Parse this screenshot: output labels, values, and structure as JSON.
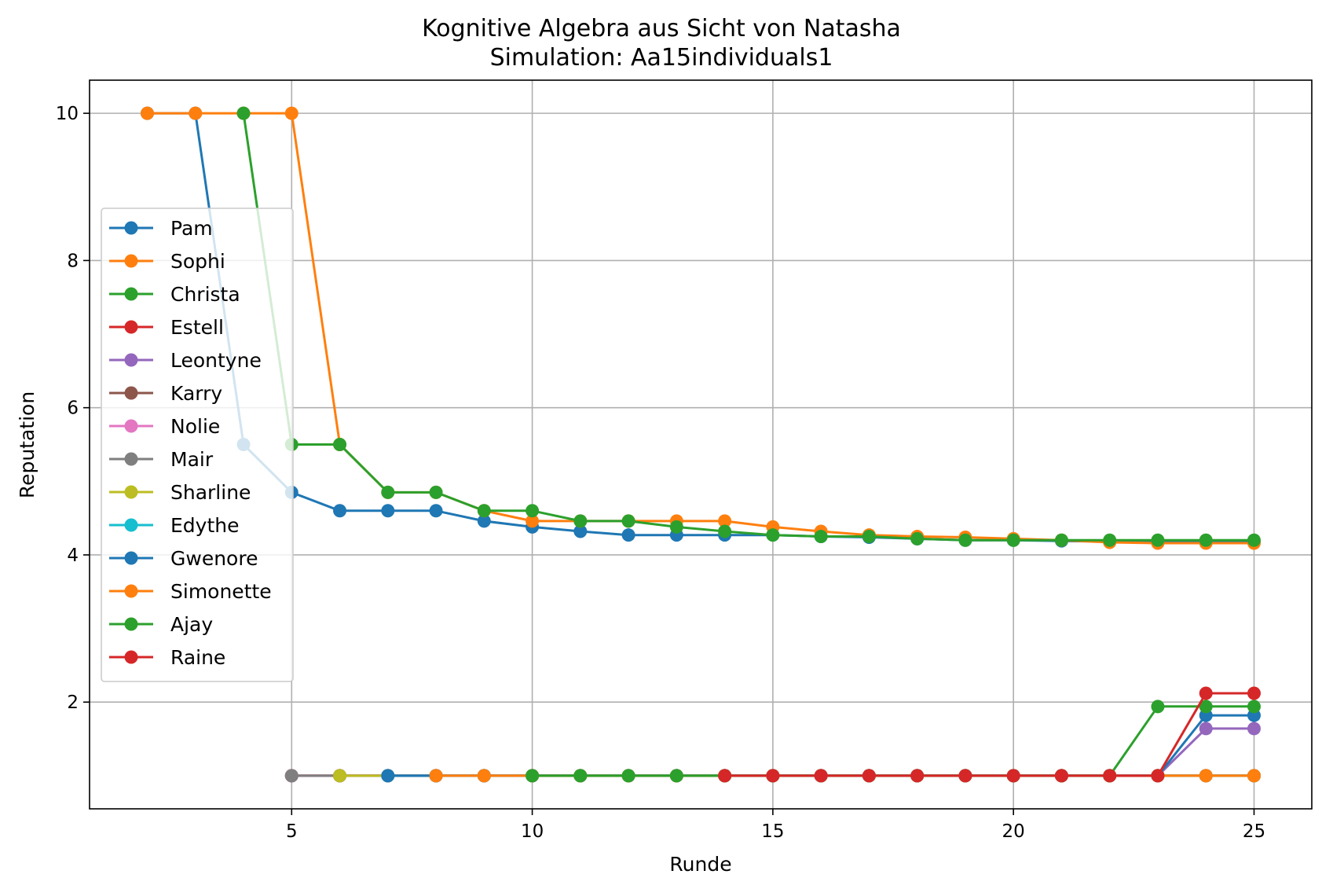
{
  "chart_data": {
    "type": "line",
    "title": "Kognitive Algebra aus Sicht von Natasha",
    "subtitle": "Simulation: Aa15individuals1",
    "xlabel": "Runde",
    "ylabel": "Reputation",
    "xlim": [
      0.8,
      26.2
    ],
    "ylim": [
      0.55,
      10.45
    ],
    "xticks": [
      5,
      10,
      15,
      20,
      25
    ],
    "yticks": [
      2,
      4,
      6,
      8,
      10
    ],
    "grid": true,
    "legend_position": "center-left",
    "series": [
      {
        "name": "Pam",
        "color": "#1f77b4",
        "x": [
          2,
          3,
          4,
          5,
          6,
          7,
          8,
          9,
          10,
          11,
          12,
          13,
          14,
          15,
          16,
          17,
          18,
          19,
          20,
          21,
          22,
          23,
          24,
          25
        ],
        "y": [
          10,
          10,
          5.5,
          4.85,
          4.6,
          4.6,
          4.6,
          4.46,
          4.38,
          4.32,
          4.27,
          4.27,
          4.27,
          4.27,
          4.25,
          4.24,
          4.22,
          4.2,
          4.2,
          4.19,
          4.18,
          4.17,
          4.17,
          4.17
        ]
      },
      {
        "name": "Sophi",
        "color": "#ff7f0e",
        "x": [
          2,
          3,
          4,
          5,
          6,
          7,
          8,
          9,
          10,
          11,
          12,
          13,
          14,
          15,
          16,
          17,
          18,
          19,
          20,
          21,
          22,
          23,
          24,
          25
        ],
        "y": [
          10,
          10,
          10,
          10,
          5.5,
          4.85,
          4.85,
          4.6,
          4.46,
          4.46,
          4.46,
          4.46,
          4.46,
          4.38,
          4.32,
          4.27,
          4.25,
          4.24,
          4.22,
          4.2,
          4.17,
          4.16,
          4.16,
          4.16
        ]
      },
      {
        "name": "Christa",
        "color": "#2ca02c",
        "x": [
          4,
          5,
          6,
          7,
          8,
          9,
          10,
          11,
          12,
          13,
          14,
          15,
          16,
          17,
          18,
          19,
          20,
          21,
          22,
          23,
          24,
          25
        ],
        "y": [
          10,
          5.5,
          5.5,
          4.85,
          4.85,
          4.6,
          4.6,
          4.46,
          4.46,
          4.38,
          4.32,
          4.27,
          4.25,
          4.25,
          4.22,
          4.2,
          4.2,
          4.2,
          4.2,
          4.2,
          4.2,
          4.2
        ]
      },
      {
        "name": "Estell",
        "color": "#d62728",
        "x": [
          5,
          6,
          7,
          8,
          9,
          10,
          11,
          12,
          13,
          14,
          15,
          16,
          17,
          18,
          19,
          20,
          21,
          22,
          23,
          24,
          25
        ],
        "y": [
          1,
          1,
          1,
          1,
          1,
          1,
          1,
          1,
          1,
          1,
          1,
          1,
          1,
          1,
          1,
          1,
          1,
          1,
          1,
          1,
          1
        ]
      },
      {
        "name": "Leontyne",
        "color": "#9467bd",
        "x": [
          5,
          6,
          7,
          8,
          9,
          10,
          11,
          12,
          13,
          14,
          15,
          16,
          17,
          18,
          19,
          20,
          21,
          22,
          23,
          24,
          25
        ],
        "y": [
          1,
          1,
          1,
          1,
          1,
          1,
          1,
          1,
          1,
          1,
          1,
          1,
          1,
          1,
          1,
          1,
          1,
          1,
          1,
          1.64,
          1.64
        ]
      },
      {
        "name": "Karry",
        "color": "#8c564b",
        "x": [
          5,
          6,
          7,
          8,
          9,
          10,
          11,
          12,
          13,
          14,
          15,
          16,
          17,
          18,
          19,
          20,
          21,
          22,
          23,
          24,
          25
        ],
        "y": [
          1,
          1,
          1,
          1,
          1,
          1,
          1,
          1,
          1,
          1,
          1,
          1,
          1,
          1,
          1,
          1,
          1,
          1,
          1,
          1,
          1
        ]
      },
      {
        "name": "Nolie",
        "color": "#e377c2",
        "x": [
          5,
          6,
          7,
          8,
          9,
          10,
          11,
          12,
          13,
          14,
          15,
          16,
          17,
          18,
          19,
          20,
          21,
          22,
          23,
          24,
          25
        ],
        "y": [
          1,
          1,
          1,
          1,
          1,
          1,
          1,
          1,
          1,
          1,
          1,
          1,
          1,
          1,
          1,
          1,
          1,
          1,
          1,
          1,
          1
        ]
      },
      {
        "name": "Mair",
        "color": "#7f7f7f",
        "x": [
          5,
          6,
          7,
          8,
          9,
          10,
          11,
          12,
          13,
          14,
          15,
          16,
          17,
          18,
          19,
          20,
          21,
          22,
          23,
          24,
          25
        ],
        "y": [
          1,
          1,
          1,
          1,
          1,
          1,
          1,
          1,
          1,
          1,
          1,
          1,
          1,
          1,
          1,
          1,
          1,
          1,
          1,
          1,
          1
        ]
      },
      {
        "name": "Sharline",
        "color": "#bcbd22",
        "x": [
          6,
          7,
          8,
          9,
          10,
          11,
          12,
          13,
          14,
          15,
          16,
          17,
          18,
          19,
          20,
          21,
          22,
          23,
          24,
          25
        ],
        "y": [
          1,
          1,
          1,
          1,
          1,
          1,
          1,
          1,
          1,
          1,
          1,
          1,
          1,
          1,
          1,
          1,
          1,
          1,
          1,
          1
        ]
      },
      {
        "name": "Edythe",
        "color": "#17becf",
        "x": [
          7,
          8,
          9,
          10,
          11,
          12,
          13,
          14,
          15,
          16,
          17,
          18,
          19,
          20,
          21,
          22,
          23,
          24,
          25
        ],
        "y": [
          1,
          1,
          1,
          1,
          1,
          1,
          1,
          1,
          1,
          1,
          1,
          1,
          1,
          1,
          1,
          1,
          1,
          1,
          1
        ]
      },
      {
        "name": "Gwenore",
        "color": "#1f77b4",
        "x": [
          7,
          8,
          9,
          10,
          11,
          12,
          13,
          14,
          15,
          16,
          17,
          18,
          19,
          20,
          21,
          22,
          23,
          24,
          25
        ],
        "y": [
          1,
          1,
          1,
          1,
          1,
          1,
          1,
          1,
          1,
          1,
          1,
          1,
          1,
          1,
          1,
          1,
          1,
          1.82,
          1.82
        ]
      },
      {
        "name": "Simonette",
        "color": "#ff7f0e",
        "x": [
          8,
          9,
          10,
          11,
          12,
          13,
          14,
          15,
          16,
          17,
          18,
          19,
          20,
          21,
          22,
          23,
          24,
          25
        ],
        "y": [
          1,
          1,
          1,
          1,
          1,
          1,
          1,
          1,
          1,
          1,
          1,
          1,
          1,
          1,
          1,
          1,
          1,
          1
        ]
      },
      {
        "name": "Ajay",
        "color": "#2ca02c",
        "x": [
          10,
          11,
          12,
          13,
          14,
          15,
          16,
          17,
          18,
          19,
          20,
          21,
          22,
          23,
          24,
          25
        ],
        "y": [
          1,
          1,
          1,
          1,
          1,
          1,
          1,
          1,
          1,
          1,
          1,
          1,
          1,
          1.94,
          1.94,
          1.94
        ]
      },
      {
        "name": "Raine",
        "color": "#d62728",
        "x": [
          14,
          15,
          16,
          17,
          18,
          19,
          20,
          21,
          22,
          23,
          24,
          25
        ],
        "y": [
          1,
          1,
          1,
          1,
          1,
          1,
          1,
          1,
          1,
          1,
          2.12,
          2.12
        ]
      }
    ]
  }
}
